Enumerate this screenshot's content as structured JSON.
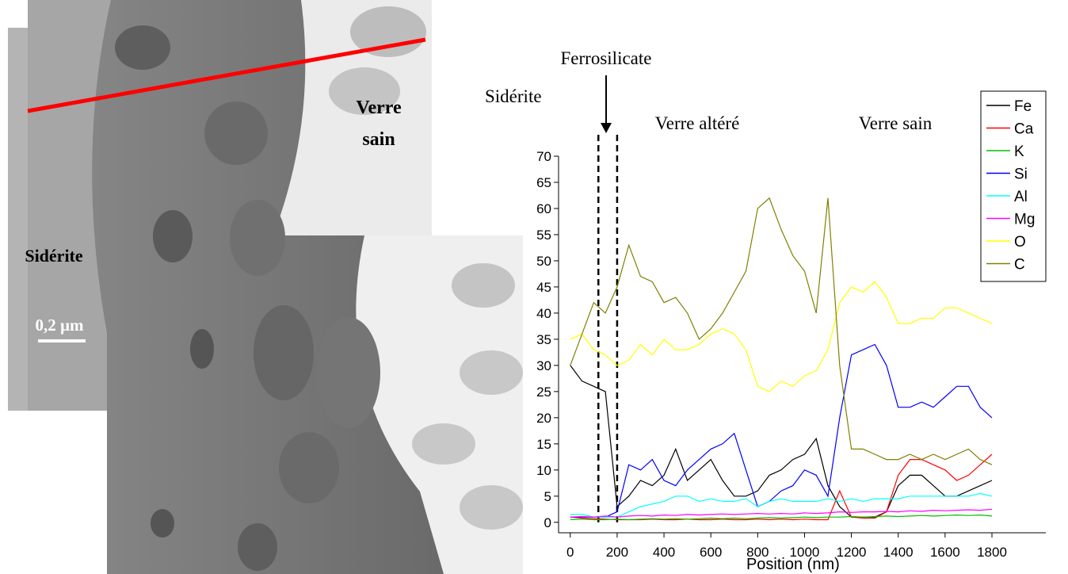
{
  "image_panel": {
    "labels": {
      "siderite": "Sidérite",
      "scale_bar": "0,2 µm",
      "verre_sain": [
        "Verre",
        "sain"
      ]
    }
  },
  "chart_data": {
    "type": "line",
    "annotations": [
      "Ferrosilicate",
      "Sidérite",
      "Verre altéré",
      "Verre sain"
    ],
    "xlabel": "Position (nm)",
    "x": [
      0,
      50,
      100,
      150,
      200,
      250,
      300,
      350,
      400,
      450,
      500,
      550,
      600,
      650,
      700,
      750,
      800,
      850,
      900,
      950,
      1000,
      1050,
      1100,
      1150,
      1200,
      1250,
      1300,
      1350,
      1400,
      1450,
      1500,
      1550,
      1600,
      1650,
      1700,
      1750,
      1800
    ],
    "series": [
      {
        "name": "Fe",
        "color": "#000000",
        "values": [
          30,
          27,
          26,
          25,
          3,
          5,
          8,
          7,
          9,
          14,
          8,
          10,
          12,
          8,
          5,
          5,
          6,
          9,
          10,
          12,
          13,
          16,
          7,
          3,
          1,
          1,
          1,
          2,
          7,
          9,
          9,
          7,
          5,
          5,
          6,
          7,
          8
        ]
      },
      {
        "name": "Ca",
        "color": "#ff0000",
        "values": [
          1,
          0.8,
          0.7,
          0.6,
          0.5,
          0.5,
          0.5,
          0.6,
          0.5,
          0.5,
          0.6,
          0.5,
          0.5,
          0.6,
          0.5,
          0.5,
          0.6,
          0.5,
          0.6,
          0.5,
          0.6,
          0.5,
          0.5,
          6,
          1,
          0.8,
          0.8,
          2,
          9,
          12,
          12,
          11,
          10,
          8,
          9,
          11,
          13
        ]
      },
      {
        "name": "K",
        "color": "#00c000",
        "values": [
          0.5,
          0.6,
          0.5,
          0.5,
          0.6,
          0.5,
          0.6,
          0.7,
          0.6,
          0.7,
          0.6,
          0.7,
          0.8,
          0.7,
          0.8,
          0.7,
          0.8,
          0.9,
          0.8,
          0.9,
          1,
          0.9,
          1,
          1,
          1.1,
          1,
          1.1,
          1.2,
          1.1,
          1.2,
          1.3,
          1.2,
          1.3,
          1.4,
          1.3,
          1.4,
          1.2
        ]
      },
      {
        "name": "Si",
        "color": "#0000ff",
        "values": [
          1,
          1,
          1,
          1,
          2,
          11,
          10,
          12,
          8,
          7,
          10,
          12,
          14,
          15,
          17,
          10,
          3,
          4,
          6,
          7,
          10,
          9,
          5,
          20,
          32,
          33,
          34,
          30,
          22,
          22,
          23,
          22,
          24,
          26,
          26,
          22,
          20
        ]
      },
      {
        "name": "Al",
        "color": "#00ffff",
        "values": [
          1.5,
          1.5,
          1,
          1,
          1,
          2,
          3,
          3.5,
          4,
          5,
          5,
          4,
          4.5,
          4,
          4,
          4.5,
          3,
          4,
          4.5,
          4,
          4,
          4,
          4.5,
          4,
          4.5,
          4,
          4.5,
          4.5,
          4.5,
          5,
          5,
          5,
          5,
          5,
          5,
          5.5,
          5
        ]
      },
      {
        "name": "Mg",
        "color": "#ff00ff",
        "values": [
          1,
          1.1,
          1,
          1.2,
          1,
          1.2,
          1.3,
          1.2,
          1.4,
          1.3,
          1.5,
          1.4,
          1.5,
          1.6,
          1.5,
          1.6,
          1.7,
          1.6,
          1.7,
          1.6,
          1.8,
          1.7,
          1.8,
          2,
          1.9,
          2,
          2,
          2.1,
          2,
          2.2,
          2.1,
          2.3,
          2.2,
          2.3,
          2.4,
          2.3,
          2.5
        ]
      },
      {
        "name": "O",
        "color": "#ffff00",
        "values": [
          35,
          36,
          33,
          32,
          30,
          31,
          34,
          32,
          35,
          33,
          33,
          34,
          36,
          37,
          36,
          33,
          26,
          25,
          27,
          26,
          28,
          29,
          33,
          42,
          45,
          44,
          46,
          43,
          38,
          38,
          39,
          39,
          41,
          41,
          40,
          39,
          38
        ]
      },
      {
        "name": "C",
        "color": "#808000",
        "values": [
          30,
          36,
          42,
          40,
          45,
          53,
          47,
          46,
          42,
          43,
          40,
          35,
          37,
          40,
          44,
          48,
          60,
          62,
          56,
          51,
          48,
          40,
          62,
          30,
          14,
          14,
          13,
          12,
          12,
          13,
          12,
          13,
          12,
          13,
          14,
          12,
          11
        ]
      }
    ],
    "markers": [
      120,
      200
    ],
    "xlim": [
      -50,
      2030
    ],
    "xticks": [
      0,
      200,
      400,
      600,
      800,
      1000,
      1200,
      1400,
      1600,
      1800
    ],
    "ylim": [
      -2,
      70
    ],
    "yticks": [
      0,
      5,
      10,
      15,
      20,
      25,
      30,
      35,
      40,
      45,
      50,
      55,
      60,
      65,
      70
    ],
    "grid": false,
    "legend": "upper right"
  }
}
